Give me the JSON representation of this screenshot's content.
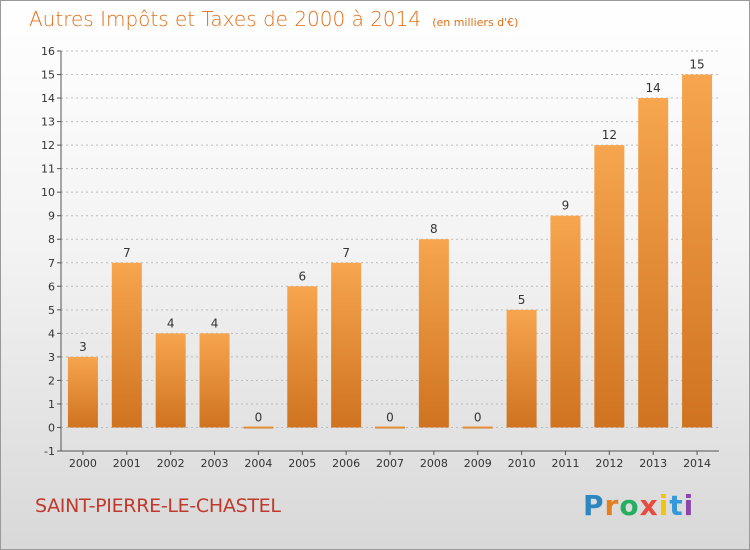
{
  "header": {
    "title": "Autres Impôts et Taxes de 2000 à 2014",
    "subtitle": "(en milliers d'€)"
  },
  "commune": "SAINT-PIERRE-LE-CHASTEL",
  "logo": {
    "text": "Proxiti",
    "letters": [
      {
        "char": "P",
        "color": "#2e86c1"
      },
      {
        "char": "r",
        "color": "#e67e22"
      },
      {
        "char": "o",
        "color": "#27ae60"
      },
      {
        "char": "x",
        "color": "#e74c3c"
      },
      {
        "char": "i",
        "color": "#f1c40f"
      },
      {
        "char": "t",
        "color": "#3498db"
      },
      {
        "char": "i",
        "color": "#8e44ad"
      }
    ]
  },
  "colors": {
    "bar_top": "#f7a54f",
    "bar_bottom": "#cf7320",
    "axis": "#555555",
    "grid": "#bbbbbb"
  },
  "chart_data": {
    "type": "bar",
    "categories": [
      "2000",
      "2001",
      "2002",
      "2003",
      "2004",
      "2005",
      "2006",
      "2007",
      "2008",
      "2009",
      "2010",
      "2011",
      "2012",
      "2013",
      "2014"
    ],
    "values": [
      3,
      7,
      4,
      4,
      0,
      6,
      7,
      0,
      8,
      0,
      5,
      9,
      12,
      14,
      15
    ],
    "ylim": [
      -1,
      16
    ],
    "yticks": [
      -1,
      0,
      1,
      2,
      3,
      4,
      5,
      6,
      7,
      8,
      9,
      10,
      11,
      12,
      13,
      14,
      15,
      16
    ],
    "grid": "horizontal dashed",
    "legend": "none"
  }
}
